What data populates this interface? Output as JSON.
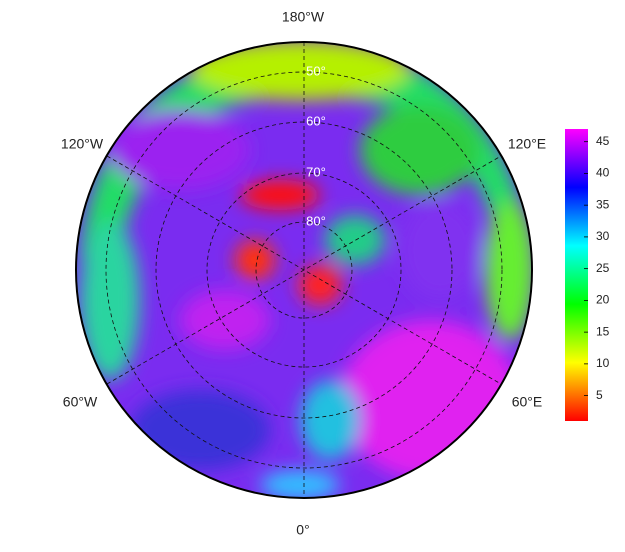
{
  "chart_data": {
    "type": "polar-map",
    "lon_labels": [
      "180°W",
      "120°W",
      "120°E",
      "60°W",
      "60°E",
      "0°"
    ],
    "lat_labels": [
      "50°",
      "60°",
      "70°",
      "80°"
    ],
    "colorbar": {
      "lim": [
        1,
        47
      ],
      "ticks": [
        5,
        10,
        15,
        20,
        25,
        30,
        35,
        40,
        45
      ],
      "colors": [
        "#ff0000",
        "#ff8000",
        "#ffff00",
        "#80ff00",
        "#00ff00",
        "#00ff80",
        "#00ffff",
        "#0080ff",
        "#0000ff",
        "#8000ff",
        "#ff00ff"
      ]
    }
  }
}
